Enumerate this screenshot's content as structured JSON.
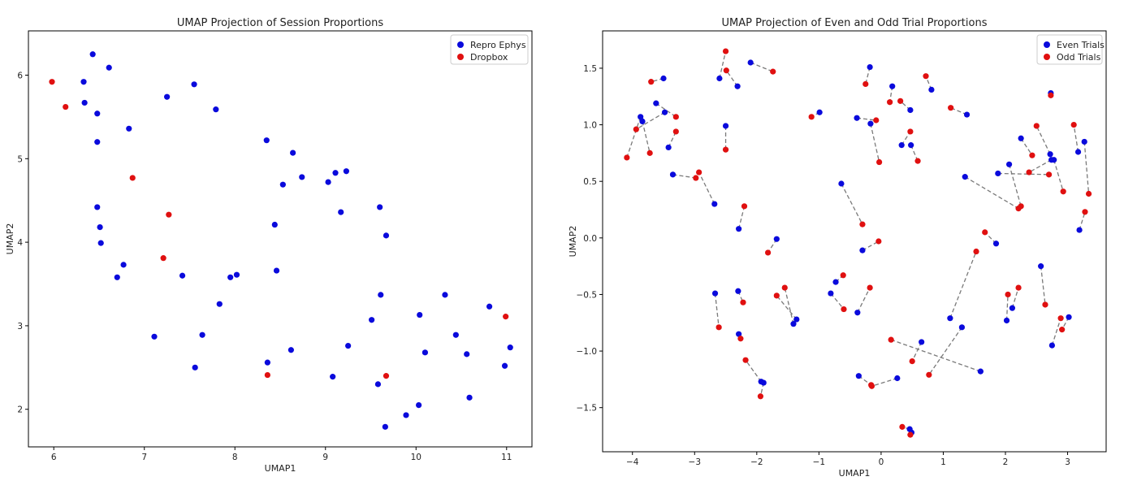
{
  "chart_data": [
    {
      "type": "scatter",
      "title": "UMAP Projection of Session Proportions",
      "xlabel": "UMAP1",
      "ylabel": "UMAP2",
      "xlim": [
        5.72,
        11.28
      ],
      "ylim": [
        1.55,
        6.53
      ],
      "xticks": [
        6,
        7,
        8,
        9,
        10,
        11
      ],
      "yticks": [
        2,
        3,
        4,
        5,
        6
      ],
      "grid": false,
      "legend_position": "top-right",
      "series": [
        {
          "name": "Repro Ephys",
          "color": "#0a0adc",
          "points": [
            [
              6.43,
              6.25
            ],
            [
              6.61,
              6.09
            ],
            [
              6.33,
              5.92
            ],
            [
              6.34,
              5.67
            ],
            [
              6.48,
              5.54
            ],
            [
              6.48,
              5.2
            ],
            [
              6.83,
              5.36
            ],
            [
              7.25,
              5.74
            ],
            [
              7.55,
              5.89
            ],
            [
              7.79,
              5.59
            ],
            [
              6.48,
              4.42
            ],
            [
              6.51,
              4.18
            ],
            [
              6.52,
              3.99
            ],
            [
              6.77,
              3.73
            ],
            [
              6.7,
              3.58
            ],
            [
              7.11,
              2.87
            ],
            [
              7.42,
              3.6
            ],
            [
              7.64,
              2.89
            ],
            [
              7.56,
              2.5
            ],
            [
              7.83,
              3.26
            ],
            [
              7.95,
              3.58
            ],
            [
              8.02,
              3.61
            ],
            [
              8.35,
              5.22
            ],
            [
              8.64,
              5.07
            ],
            [
              8.53,
              4.69
            ],
            [
              8.74,
              4.78
            ],
            [
              9.03,
              4.72
            ],
            [
              9.11,
              4.83
            ],
            [
              9.23,
              4.85
            ],
            [
              9.17,
              4.36
            ],
            [
              8.44,
              4.21
            ],
            [
              8.46,
              3.66
            ],
            [
              8.36,
              2.56
            ],
            [
              8.62,
              2.71
            ],
            [
              9.25,
              2.76
            ],
            [
              9.08,
              2.39
            ],
            [
              9.6,
              4.42
            ],
            [
              9.67,
              4.08
            ],
            [
              9.61,
              3.37
            ],
            [
              9.51,
              3.07
            ],
            [
              9.58,
              2.3
            ],
            [
              9.66,
              1.79
            ],
            [
              9.89,
              1.93
            ],
            [
              10.03,
              2.05
            ],
            [
              10.04,
              3.13
            ],
            [
              10.1,
              2.68
            ],
            [
              10.32,
              3.37
            ],
            [
              10.44,
              2.89
            ],
            [
              10.56,
              2.66
            ],
            [
              10.59,
              2.14
            ],
            [
              10.81,
              3.23
            ],
            [
              10.98,
              2.52
            ],
            [
              11.04,
              2.74
            ]
          ]
        },
        {
          "name": "Dropbox",
          "color": "#e01010",
          "points": [
            [
              5.98,
              5.92
            ],
            [
              6.13,
              5.62
            ],
            [
              6.87,
              4.77
            ],
            [
              7.27,
              4.33
            ],
            [
              7.21,
              3.81
            ],
            [
              8.36,
              2.41
            ],
            [
              9.67,
              2.4
            ],
            [
              10.99,
              3.11
            ]
          ]
        }
      ]
    },
    {
      "type": "scatter",
      "title": "UMAP Projection of Even and Odd Trial Proportions",
      "xlabel": "UMAP1",
      "ylabel": "UMAP2",
      "xlim": [
        -4.48,
        3.62
      ],
      "ylim": [
        -1.89,
        1.83
      ],
      "xticks": [
        -4,
        -3,
        -2,
        -1,
        0,
        1,
        2,
        3
      ],
      "yticks": [
        -1.5,
        -1.0,
        -0.5,
        0.0,
        0.5,
        1.0,
        1.5
      ],
      "grid": false,
      "legend_position": "top-right",
      "series": [
        {
          "name": "Even Trials",
          "color": "#0a0adc"
        },
        {
          "name": "Odd Trials",
          "color": "#e01010"
        }
      ],
      "pairs": [
        [
          [
            -2.6,
            1.41
          ],
          [
            -2.5,
            1.65
          ]
        ],
        [
          [
            -2.31,
            1.34
          ],
          [
            -2.49,
            1.48
          ]
        ],
        [
          [
            -2.1,
            1.55
          ],
          [
            -1.74,
            1.47
          ]
        ],
        [
          [
            -3.5,
            1.41
          ],
          [
            -3.7,
            1.38
          ]
        ],
        [
          [
            -3.62,
            1.19
          ],
          [
            -3.3,
            1.07
          ]
        ],
        [
          [
            -3.87,
            1.07
          ],
          [
            -4.09,
            0.71
          ]
        ],
        [
          [
            -3.84,
            1.03
          ],
          [
            -3.72,
            0.75
          ]
        ],
        [
          [
            -3.48,
            1.11
          ],
          [
            -3.94,
            0.96
          ]
        ],
        [
          [
            -3.42,
            0.8
          ],
          [
            -3.3,
            0.94
          ]
        ],
        [
          [
            -2.5,
            0.99
          ],
          [
            -2.5,
            0.78
          ]
        ],
        [
          [
            -3.35,
            0.56
          ],
          [
            -2.98,
            0.53
          ]
        ],
        [
          [
            -2.68,
            0.3
          ],
          [
            -2.93,
            0.58
          ]
        ],
        [
          [
            -2.29,
            0.08
          ],
          [
            -2.2,
            0.28
          ]
        ],
        [
          [
            -1.68,
            -0.01
          ],
          [
            -1.82,
            -0.13
          ]
        ],
        [
          [
            -0.99,
            1.11
          ],
          [
            -1.12,
            1.07
          ]
        ],
        [
          [
            -0.39,
            1.06
          ],
          [
            -0.08,
            1.04
          ]
        ],
        [
          [
            -0.18,
            1.51
          ],
          [
            -0.25,
            1.36
          ]
        ],
        [
          [
            -0.17,
            1.01
          ],
          [
            -0.03,
            0.67
          ]
        ],
        [
          [
            0.18,
            1.34
          ],
          [
            0.14,
            1.2
          ]
        ],
        [
          [
            0.47,
            1.13
          ],
          [
            0.31,
            1.21
          ]
        ],
        [
          [
            0.33,
            0.82
          ],
          [
            0.47,
            0.94
          ]
        ],
        [
          [
            0.48,
            0.82
          ],
          [
            0.59,
            0.68
          ]
        ],
        [
          [
            0.81,
            1.31
          ],
          [
            0.72,
            1.43
          ]
        ],
        [
          [
            1.38,
            1.09
          ],
          [
            1.12,
            1.15
          ]
        ],
        [
          [
            -0.64,
            0.48
          ],
          [
            -0.3,
            0.12
          ]
        ],
        [
          [
            -0.3,
            -0.11
          ],
          [
            -0.04,
            -0.03
          ]
        ],
        [
          [
            -0.73,
            -0.39
          ],
          [
            -0.61,
            -0.33
          ]
        ],
        [
          [
            -0.81,
            -0.49
          ],
          [
            -0.6,
            -0.63
          ]
        ],
        [
          [
            -0.38,
            -0.66
          ],
          [
            -0.18,
            -0.44
          ]
        ],
        [
          [
            -1.41,
            -0.76
          ],
          [
            -1.55,
            -0.44
          ]
        ],
        [
          [
            -1.36,
            -0.72
          ],
          [
            -1.68,
            -0.51
          ]
        ],
        [
          [
            -2.67,
            -0.49
          ],
          [
            -2.61,
            -0.79
          ]
        ],
        [
          [
            -2.3,
            -0.47
          ],
          [
            -2.22,
            -0.57
          ]
        ],
        [
          [
            -2.29,
            -0.85
          ],
          [
            -2.26,
            -0.89
          ]
        ],
        [
          [
            -1.93,
            -1.27
          ],
          [
            -2.18,
            -1.08
          ]
        ],
        [
          [
            -1.89,
            -1.28
          ],
          [
            -1.94,
            -1.4
          ]
        ],
        [
          [
            -0.36,
            -1.22
          ],
          [
            -0.16,
            -1.3
          ]
        ],
        [
          [
            0.26,
            -1.24
          ],
          [
            -0.15,
            -1.31
          ]
        ],
        [
          [
            0.65,
            -0.92
          ],
          [
            0.5,
            -1.09
          ]
        ],
        [
          [
            1.6,
            -1.18
          ],
          [
            0.16,
            -0.9
          ]
        ],
        [
          [
            1.3,
            -0.79
          ],
          [
            0.77,
            -1.21
          ]
        ],
        [
          [
            1.11,
            -0.71
          ],
          [
            1.53,
            -0.12
          ]
        ],
        [
          [
            1.85,
            -0.05
          ],
          [
            1.67,
            0.05
          ]
        ],
        [
          [
            1.35,
            0.54
          ],
          [
            2.21,
            0.26
          ]
        ],
        [
          [
            1.88,
            0.57
          ],
          [
            2.7,
            0.56
          ]
        ],
        [
          [
            2.06,
            0.65
          ],
          [
            2.25,
            0.28
          ]
        ],
        [
          [
            2.25,
            0.88
          ],
          [
            2.43,
            0.73
          ]
        ],
        [
          [
            2.72,
            0.74
          ],
          [
            2.5,
            0.99
          ]
        ],
        [
          [
            2.74,
            0.69
          ],
          [
            2.38,
            0.58
          ]
        ],
        [
          [
            2.78,
            0.69
          ],
          [
            2.93,
            0.41
          ]
        ],
        [
          [
            2.73,
            1.28
          ],
          [
            2.73,
            1.26
          ]
        ],
        [
          [
            3.17,
            0.76
          ],
          [
            3.1,
            1.0
          ]
        ],
        [
          [
            3.27,
            0.85
          ],
          [
            3.34,
            0.39
          ]
        ],
        [
          [
            3.19,
            0.07
          ],
          [
            3.28,
            0.23
          ]
        ],
        [
          [
            2.02,
            -0.73
          ],
          [
            2.04,
            -0.5
          ]
        ],
        [
          [
            2.11,
            -0.62
          ],
          [
            2.21,
            -0.44
          ]
        ],
        [
          [
            2.57,
            -0.25
          ],
          [
            2.64,
            -0.59
          ]
        ],
        [
          [
            2.75,
            -0.95
          ],
          [
            2.89,
            -0.71
          ]
        ],
        [
          [
            3.02,
            -0.7
          ],
          [
            2.91,
            -0.81
          ]
        ],
        [
          [
            0.46,
            -1.69
          ],
          [
            0.34,
            -1.67
          ]
        ],
        [
          [
            0.49,
            -1.72
          ],
          [
            0.47,
            -1.74
          ]
        ]
      ]
    }
  ]
}
